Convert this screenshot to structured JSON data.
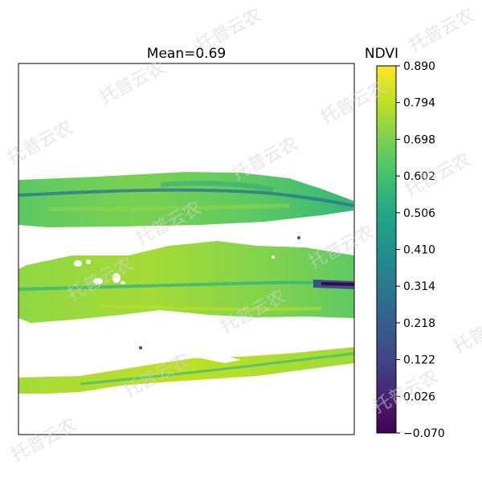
{
  "chart_data": {
    "type": "heatmap",
    "title": "Mean=0.69",
    "colorbar": {
      "label": "NDVI",
      "min": -0.07,
      "max": 0.89,
      "ticks": [
        "0.890",
        "0.794",
        "0.698",
        "0.602",
        "0.506",
        "0.410",
        "0.314",
        "0.218",
        "0.122",
        "0.026",
        "−0.070"
      ],
      "tick_values": [
        0.89,
        0.794,
        0.698,
        0.602,
        0.506,
        0.41,
        0.314,
        0.218,
        0.122,
        0.026,
        -0.07
      ],
      "colormap": "viridis"
    },
    "mean": 0.69,
    "axes": {
      "ticks_visible": false,
      "grid": false
    }
  },
  "watermarks": [
    "托普云农",
    "托普云农",
    "托普云农",
    "托普云农",
    "托普云农",
    "托普云农",
    "托普云农",
    "托普云农",
    "托普云农",
    "托普云农",
    "托普云农",
    "托普云农",
    "托普云农",
    "托普云农",
    "托普云农"
  ]
}
